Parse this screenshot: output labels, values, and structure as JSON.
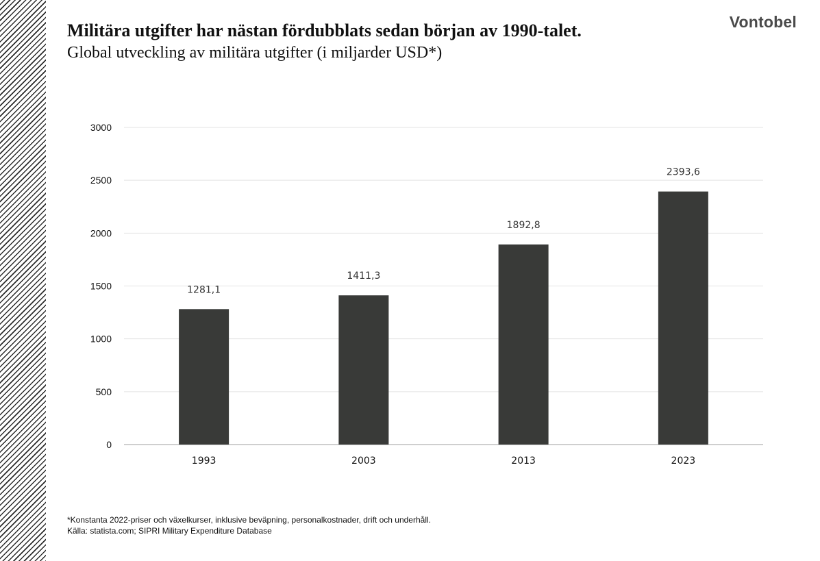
{
  "header": {
    "title": "Militära utgifter har nästan fördubblats sedan början av 1990-talet.",
    "subtitle": "Global utveckling av militära utgifter (i miljarder USD*)",
    "logo": "Vontobel"
  },
  "footer": {
    "note": "*Konstanta 2022-priser och växelkurser,  inklusive beväpning,  personalkostnader,  drift och underhåll.",
    "source": "Källa: statista.com; SIPRI Military Expenditure Database"
  },
  "chart_data": {
    "type": "bar",
    "title": "",
    "xlabel": "",
    "ylabel": "",
    "categories": [
      "1993",
      "2003",
      "2013",
      "2023"
    ],
    "values": [
      1281.1,
      1411.3,
      1892.8,
      2393.6
    ],
    "value_labels": [
      "1281,1",
      "1411,3",
      "1892,8",
      "2393,6"
    ],
    "ylim": [
      0,
      3000
    ],
    "yticks": [
      0,
      500,
      1000,
      1500,
      2000,
      2500,
      3000
    ],
    "grid": true,
    "legend": "none",
    "colors": {
      "bar": "#393a38",
      "grid": "#e3e3e3",
      "axis": "#bfbfbf",
      "text": "#111111"
    }
  }
}
